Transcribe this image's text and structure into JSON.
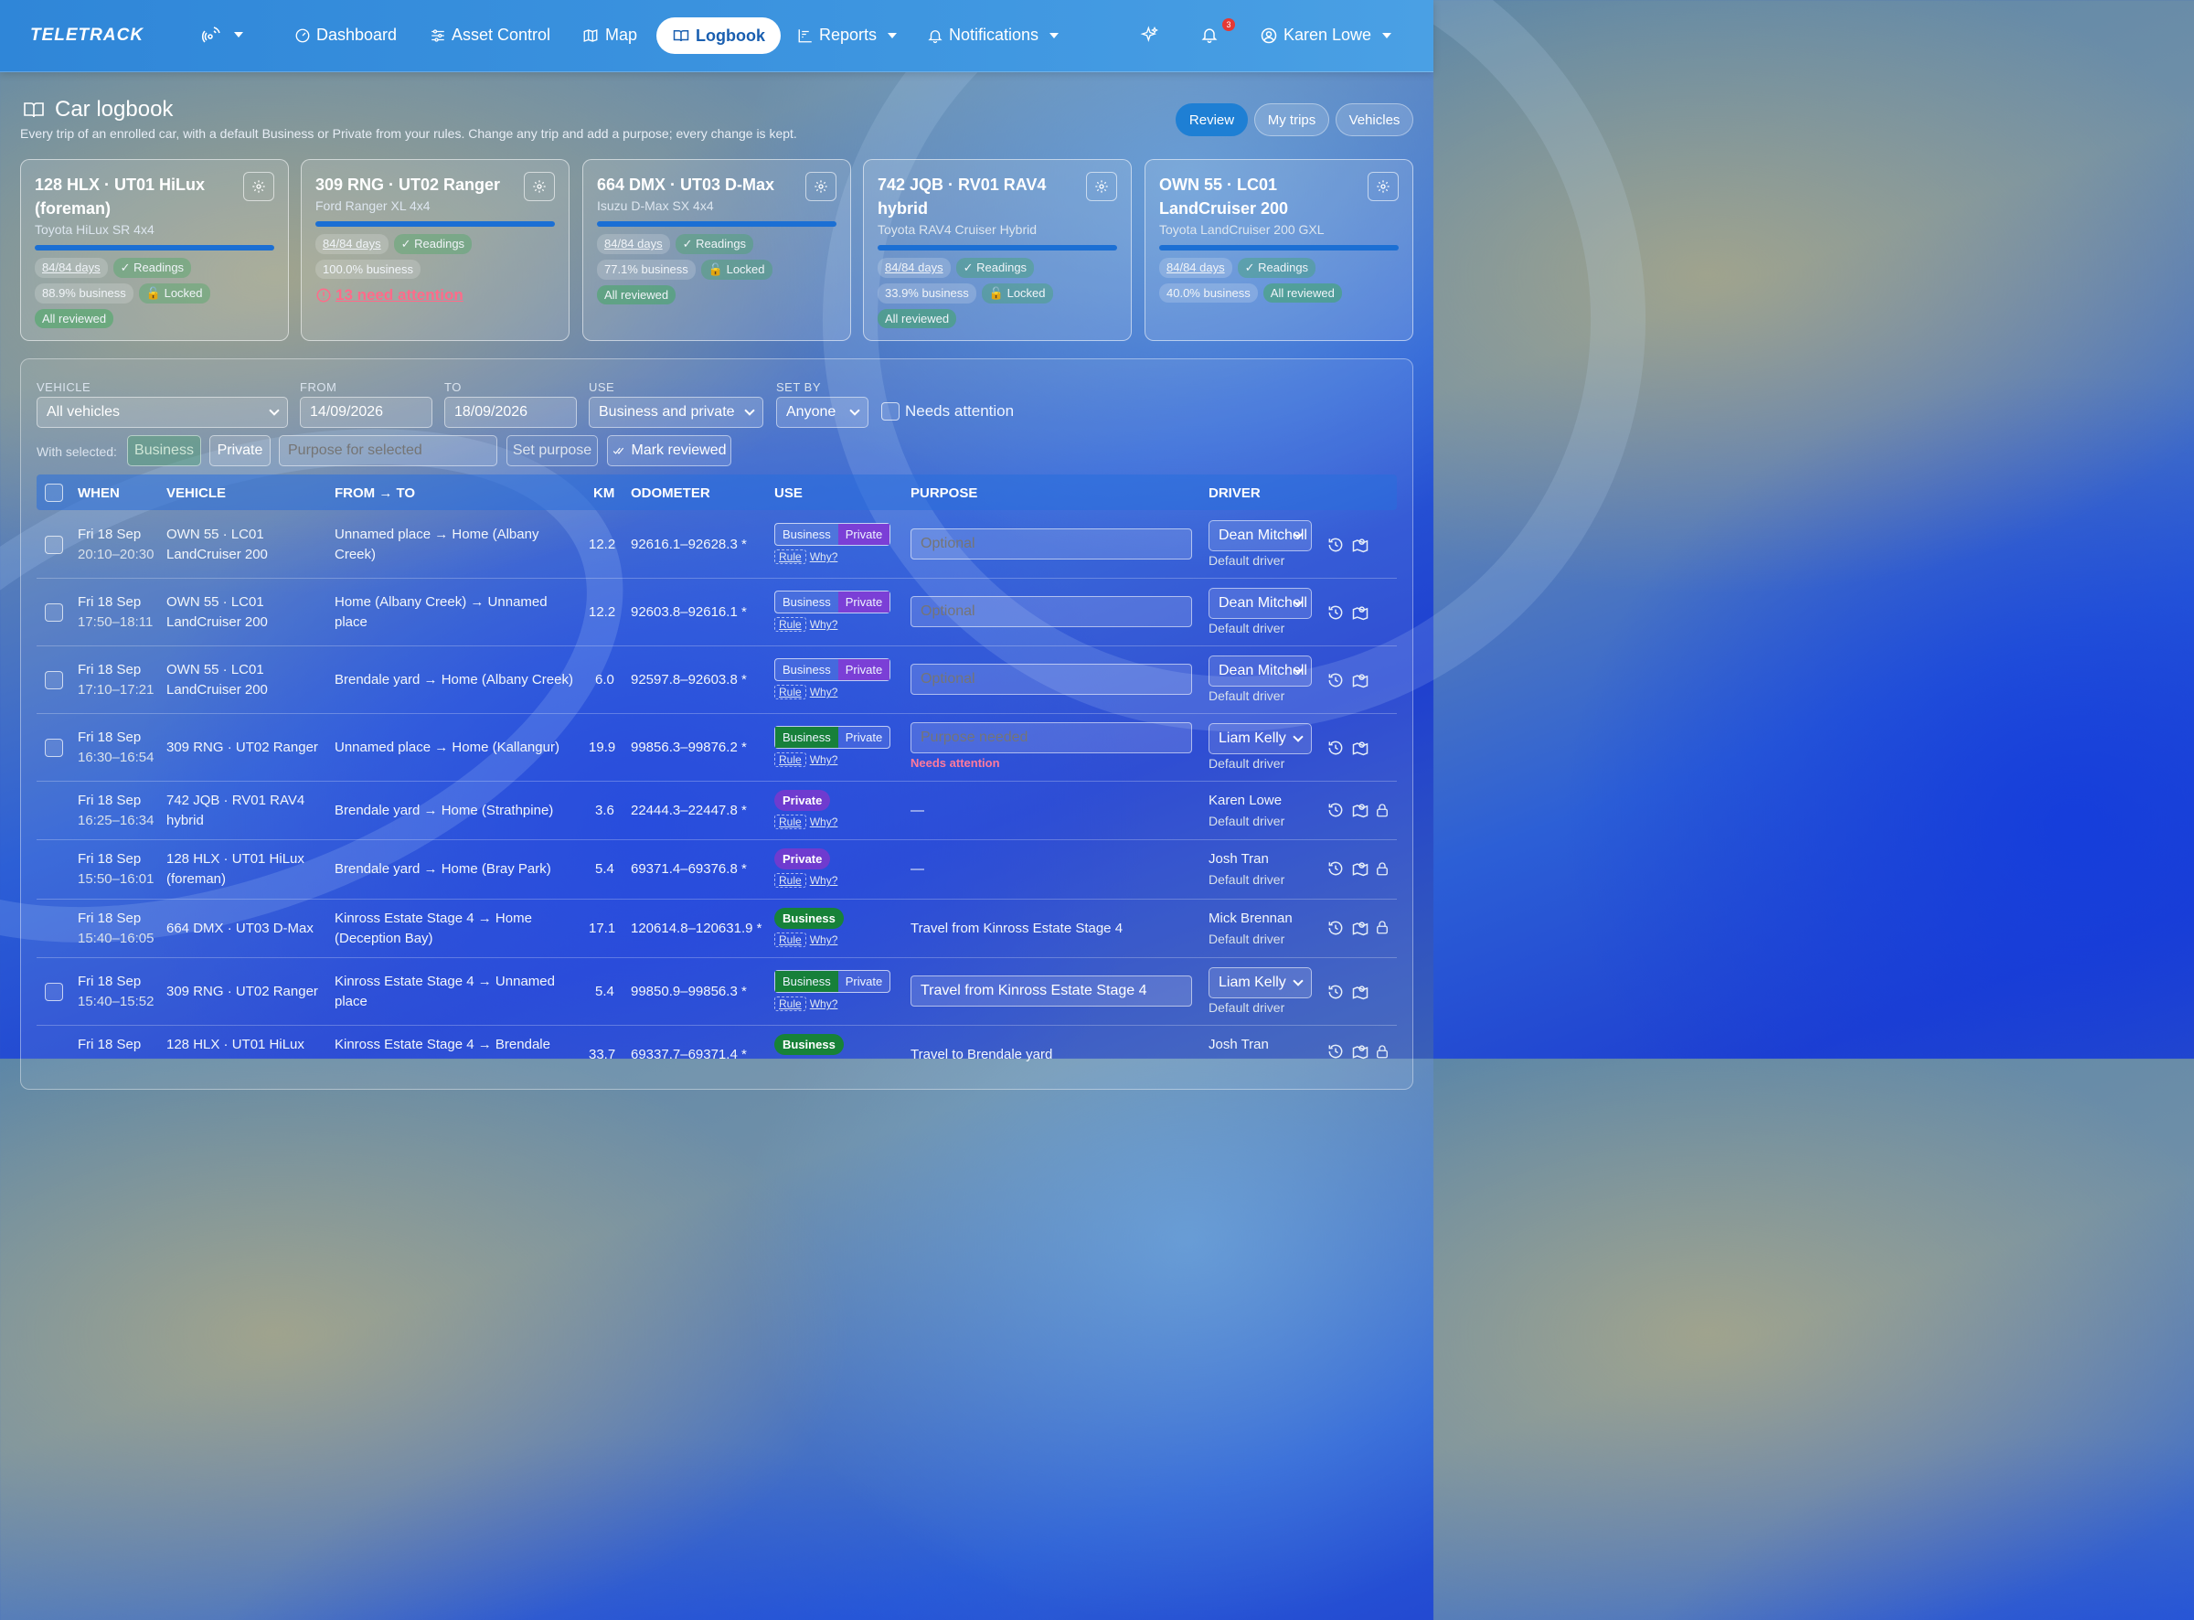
{
  "nav": {
    "logo": "TELETRACK",
    "items": [
      {
        "label": "Dashboard"
      },
      {
        "label": "Asset Control"
      },
      {
        "label": "Map"
      },
      {
        "label": "Logbook"
      },
      {
        "label": "Reports"
      },
      {
        "label": "Notifications"
      }
    ],
    "notif_count": "3",
    "user": "Karen Lowe"
  },
  "page": {
    "title": "Car logbook",
    "subtitle": "Every trip of an enrolled car, with a default Business or Private from your rules. Change any trip and add a purpose; every change is kept.",
    "buttons": [
      "Review",
      "My trips",
      "Vehicles"
    ]
  },
  "cards": [
    {
      "title": "128 HLX · UT01 HiLux (foreman)",
      "model": "Toyota HiLux SR 4x4",
      "days": "84/84 days",
      "readings": "Readings",
      "business": "88.9% business",
      "locked": "Locked",
      "status": "All reviewed"
    },
    {
      "title": "309 RNG · UT02 Ranger",
      "model": "Ford Ranger XL 4x4",
      "days": "84/84 days",
      "readings": "Readings",
      "business": "100.0% business",
      "locked": "",
      "status": "13 need attention"
    },
    {
      "title": "664 DMX · UT03 D-Max",
      "model": "Isuzu D-Max SX 4x4",
      "days": "84/84 days",
      "readings": "Readings",
      "business": "77.1% business",
      "locked": "Locked",
      "status": "All reviewed"
    },
    {
      "title": "742 JQB · RV01 RAV4 hybrid",
      "model": "Toyota RAV4 Cruiser Hybrid",
      "days": "84/84 days",
      "readings": "Readings",
      "business": "33.9% business",
      "locked": "Locked",
      "status": "All reviewed"
    },
    {
      "title": "OWN 55 · LC01 LandCruiser 200",
      "model": "Toyota LandCruiser 200 GXL",
      "days": "84/84 days",
      "readings": "Readings",
      "business": "40.0% business",
      "locked": "",
      "status": "All reviewed"
    }
  ],
  "filters": {
    "vehicle_label": "VEHICLE",
    "vehicle": "All vehicles",
    "from_label": "FROM",
    "from": "14/09/2026",
    "to_label": "TO",
    "to": "18/09/2026",
    "use_label": "USE",
    "use": "Business and private",
    "setby_label": "SET BY",
    "setby": "Anyone",
    "needs_attention": "Needs attention"
  },
  "bulk": {
    "label": "With selected:",
    "business": "Business",
    "private": "Private",
    "purpose_placeholder": "Purpose for selected",
    "set_purpose": "Set purpose",
    "mark_reviewed": "Mark reviewed"
  },
  "table": {
    "headers": [
      "WHEN",
      "VEHICLE",
      "FROM → TO",
      "KM",
      "ODOMETER",
      "USE",
      "PURPOSE",
      "DRIVER"
    ],
    "rule": "Rule",
    "why": "Why?",
    "default_driver": "Default driver",
    "needs_attention": "Needs attention",
    "rows": [
      {
        "date": "Fri 18 Sep",
        "time": "20:10–20:30",
        "vehicle": "OWN 55 · LC01 LandCruiser 200",
        "route": "Unnamed place → Home (Albany Creek)",
        "km": "12.2",
        "odo": "92616.1–92628.3 *",
        "use": "private-edit",
        "purpose": "Optional",
        "driver": "Dean Mitchell"
      },
      {
        "date": "Fri 18 Sep",
        "time": "17:50–18:11",
        "vehicle": "OWN 55 · LC01 LandCruiser 200",
        "route": "Home (Albany Creek) → Unnamed place",
        "km": "12.2",
        "odo": "92603.8–92616.1 *",
        "use": "private-edit",
        "purpose": "Optional",
        "driver": "Dean Mitchell"
      },
      {
        "date": "Fri 18 Sep",
        "time": "17:10–17:21",
        "vehicle": "OWN 55 · LC01 LandCruiser 200",
        "route": "Brendale yard → Home (Albany Creek)",
        "km": "6.0",
        "odo": "92597.8–92603.8 *",
        "use": "private-edit",
        "purpose": "Optional",
        "driver": "Dean Mitchell"
      },
      {
        "date": "Fri 18 Sep",
        "time": "16:30–16:54",
        "vehicle": "309 RNG · UT02 Ranger",
        "route": "Unnamed place → Home (Kallangur)",
        "km": "19.9",
        "odo": "99856.3–99876.2 *",
        "use": "business-edit",
        "purpose": "Purpose needed",
        "driver": "Liam Kelly"
      },
      {
        "date": "Fri 18 Sep",
        "time": "16:25–16:34",
        "vehicle": "742 JQB · RV01 RAV4 hybrid",
        "route": "Brendale yard → Home (Strathpine)",
        "km": "3.6",
        "odo": "22444.3–22447.8 *",
        "use": "Private",
        "purpose": "—",
        "driver": "Karen Lowe"
      },
      {
        "date": "Fri 18 Sep",
        "time": "15:50–16:01",
        "vehicle": "128 HLX · UT01 HiLux (foreman)",
        "route": "Brendale yard → Home (Bray Park)",
        "km": "5.4",
        "odo": "69371.4–69376.8 *",
        "use": "Private",
        "purpose": "—",
        "driver": "Josh Tran"
      },
      {
        "date": "Fri 18 Sep",
        "time": "15:40–16:05",
        "vehicle": "664 DMX · UT03 D-Max",
        "route": "Kinross Estate Stage 4 → Home (Deception Bay)",
        "km": "17.1",
        "odo": "120614.8–120631.9 *",
        "use": "Business",
        "purpose": "Travel from Kinross Estate Stage 4",
        "driver": "Mick Brennan"
      },
      {
        "date": "Fri 18 Sep",
        "time": "15:40–15:52",
        "vehicle": "309 RNG · UT02 Ranger",
        "route": "Kinross Estate Stage 4 → Unnamed place",
        "km": "5.4",
        "odo": "99850.9–99856.3 *",
        "use": "business-edit",
        "purpose": "Travel from Kinross Estate Stage 4",
        "driver": "Liam Kelly"
      },
      {
        "date": "Fri 18 Sep",
        "time": "",
        "vehicle": "128 HLX · UT01 HiLux",
        "route": "Kinross Estate Stage 4 → Brendale",
        "km": "33.7",
        "odo": "69337.7–69371.4 *",
        "use": "Business",
        "purpose": "Travel to Brendale yard",
        "driver": "Josh Tran"
      }
    ]
  }
}
